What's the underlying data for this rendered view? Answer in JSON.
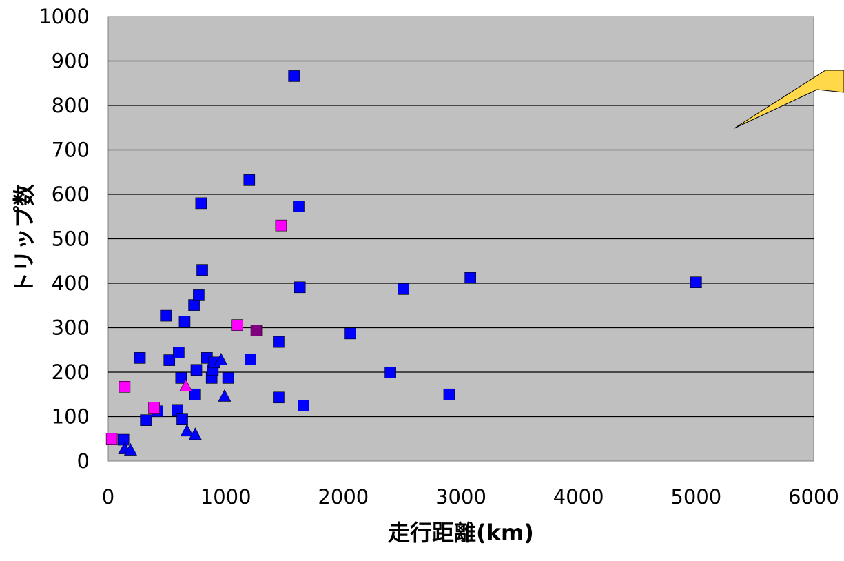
{
  "chart_data": {
    "type": "scatter",
    "title": "",
    "xlabel": "走行距離(km)",
    "ylabel": "トリップ数",
    "xlim": [
      0,
      6000
    ],
    "ylim": [
      0,
      1000
    ],
    "x_ticks": [
      "0",
      "1000",
      "2000",
      "3000",
      "4000",
      "5000",
      "6000"
    ],
    "y_ticks": [
      "0",
      "100",
      "200",
      "300",
      "400",
      "500",
      "600",
      "700",
      "800",
      "900",
      "1000"
    ],
    "grid": "horizontal",
    "plot_background": "#c0c0c0",
    "legend": "none",
    "callout": {
      "color": "#ffd94a",
      "text": ""
    },
    "series": [
      {
        "marker": "square",
        "color": "#0000ff",
        "points": [
          [
            130,
            48
          ],
          [
            270,
            232
          ],
          [
            320,
            92
          ],
          [
            420,
            112
          ],
          [
            490,
            327
          ],
          [
            520,
            227
          ],
          [
            590,
            115
          ],
          [
            600,
            244
          ],
          [
            620,
            187
          ],
          [
            630,
            95
          ],
          [
            650,
            314
          ],
          [
            730,
            351
          ],
          [
            740,
            150
          ],
          [
            750,
            205
          ],
          [
            770,
            373
          ],
          [
            790,
            580
          ],
          [
            800,
            430
          ],
          [
            840,
            232
          ],
          [
            880,
            187
          ],
          [
            890,
            205
          ],
          [
            900,
            222
          ],
          [
            1020,
            187
          ],
          [
            1200,
            632
          ],
          [
            1210,
            229
          ],
          [
            1450,
            268
          ],
          [
            1450,
            143
          ],
          [
            1580,
            866
          ],
          [
            1620,
            573
          ],
          [
            1630,
            391
          ],
          [
            1660,
            125
          ],
          [
            2060,
            287
          ],
          [
            2400,
            199
          ],
          [
            2510,
            387
          ],
          [
            2900,
            150
          ],
          [
            3080,
            412
          ],
          [
            5000,
            402
          ]
        ]
      },
      {
        "marker": "triangle",
        "color": "#0000ff",
        "points": [
          [
            140,
            27
          ],
          [
            190,
            24
          ],
          [
            670,
            67
          ],
          [
            740,
            59
          ],
          [
            960,
            227
          ],
          [
            990,
            145
          ]
        ]
      },
      {
        "marker": "square",
        "color": "#ff00ff",
        "points": [
          [
            30,
            50
          ],
          [
            140,
            167
          ],
          [
            390,
            120
          ],
          [
            1100,
            306
          ],
          [
            1470,
            530
          ]
        ]
      },
      {
        "marker": "triangle",
        "color": "#ff00ff",
        "points": [
          [
            660,
            168
          ]
        ]
      },
      {
        "marker": "square",
        "color": "#800080",
        "points": [
          [
            1260,
            294
          ]
        ]
      }
    ]
  }
}
